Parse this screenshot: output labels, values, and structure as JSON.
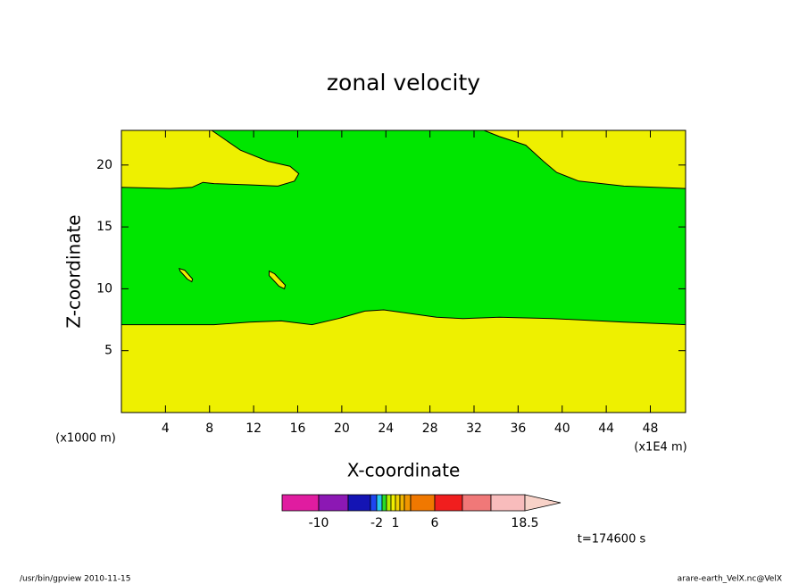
{
  "chart_data": {
    "type": "contour",
    "title": "zonal velocity",
    "xlabel": "X-coordinate",
    "ylabel": "Z-coordinate",
    "x_unit_left": "(x1000 m)",
    "x_unit_right": "(x1E4 m)",
    "time_label": "t=174600 s",
    "footer_left": "/usr/bin/gpview   2010-11-15",
    "footer_right": "arare-earth_VelX.nc@VelX",
    "xlim": [
      0,
      51.2
    ],
    "ylim": [
      0,
      22.8
    ],
    "xticks": [
      4,
      8,
      12,
      16,
      20,
      24,
      28,
      32,
      36,
      40,
      44,
      48
    ],
    "yticks": [
      5,
      10,
      15,
      20
    ],
    "background_color": "#eef000",
    "regions": [
      {
        "color": "#00e600",
        "x": [
          0,
          3.6,
          8.4,
          11.6,
          14.5,
          17.3,
          19.7,
          22.1,
          23.8,
          26.2,
          28.6,
          31.0,
          34.3,
          39.1,
          45.6,
          51.2,
          51.2,
          45.6,
          41.5,
          39.5,
          38.3,
          36.7,
          34.3,
          32.9,
          8.2,
          10.8,
          13.3,
          15.3,
          16.1,
          15.7,
          14.2,
          11.6,
          8.4,
          7.4,
          6.4,
          4.4,
          0
        ],
        "y": [
          7.1,
          7.1,
          7.1,
          7.3,
          7.4,
          7.1,
          7.6,
          8.2,
          8.3,
          8.0,
          7.7,
          7.6,
          7.7,
          7.6,
          7.3,
          7.1,
          18.1,
          18.3,
          18.7,
          19.4,
          20.3,
          21.6,
          22.3,
          22.8,
          22.8,
          21.2,
          20.3,
          19.9,
          19.3,
          18.7,
          18.3,
          18.4,
          18.5,
          18.6,
          18.2,
          18.1,
          18.2
        ]
      },
      {
        "color": "#eef000",
        "x": [
          5.25,
          5.74,
          6.46,
          6.38,
          5.98,
          5.33
        ],
        "y": [
          11.64,
          11.5,
          10.79,
          10.57,
          10.79,
          11.43
        ]
      },
      {
        "color": "#eef000",
        "x": [
          13.41,
          13.9,
          14.87,
          14.79,
          14.3,
          13.41
        ],
        "y": [
          11.43,
          11.21,
          10.29,
          10.0,
          10.21,
          11.07
        ]
      }
    ],
    "colorbar": {
      "colors": [
        "#e01ca0",
        "#8c18b4",
        "#1414b4",
        "#1e46f0",
        "#28c8f0",
        "#28dc28",
        "#b4f000",
        "#f0f000",
        "#f0d200",
        "#f0b400",
        "#f09600",
        "#f07800",
        "#f01e1e",
        "#f07878",
        "#f8bcbc",
        "#f8d2c8"
      ],
      "labels": [
        -10,
        -2,
        1,
        6,
        18.5
      ]
    }
  }
}
